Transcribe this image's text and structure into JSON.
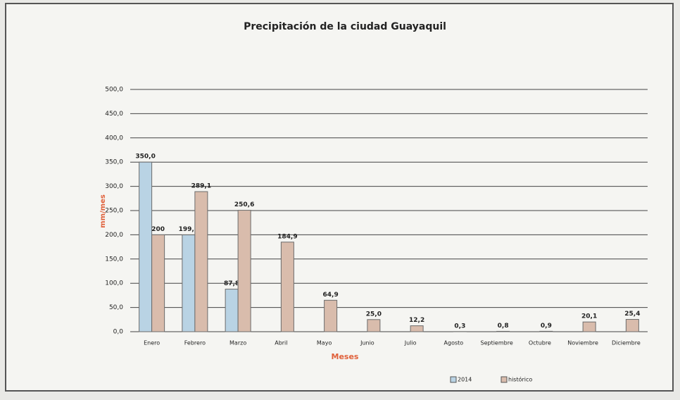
{
  "chart_data": {
    "type": "bar",
    "title": "Precipitación de la ciudad Guayaquil",
    "x_label": "Meses",
    "y_label": "mm/mes",
    "categories": [
      "Enero",
      "Febrero",
      "Marzo",
      "Abril",
      "Mayo",
      "Junio",
      "Julio",
      "Agosto",
      "Septiembre",
      "Octubre",
      "Noviembre",
      "Diciembre"
    ],
    "series": [
      {
        "name": "2014",
        "color": "#b9d3e4",
        "values": [
          350.0,
          199.8,
          87.8,
          null,
          null,
          null,
          null,
          null,
          null,
          null,
          null,
          null
        ],
        "value_labels": [
          "350,0",
          "199,8",
          "87,8",
          null,
          null,
          null,
          null,
          null,
          null,
          null,
          null,
          null
        ]
      },
      {
        "name": "histórico",
        "color": "#d9bcac",
        "values": [
          200,
          289.1,
          250.6,
          184.9,
          64.9,
          25.0,
          12.2,
          0.3,
          0.8,
          0.9,
          20.1,
          25.4
        ],
        "value_labels": [
          "200",
          "289,1",
          "250,6",
          "184,9",
          "64,9",
          "25,0",
          "12,2",
          "0,3",
          "0,8",
          "0,9",
          "20,1",
          "25,4"
        ]
      }
    ],
    "ylim": [
      0,
      500
    ],
    "yticks": [
      {
        "value": 0,
        "label": "0,0"
      },
      {
        "value": 50,
        "label": "50,0"
      },
      {
        "value": 100,
        "label": "100,0"
      },
      {
        "value": 150,
        "label": "150,0"
      },
      {
        "value": 200,
        "label": "200,0"
      },
      {
        "value": 250,
        "label": "250,0"
      },
      {
        "value": 300,
        "label": "300,0"
      },
      {
        "value": 350,
        "label": "350,0"
      },
      {
        "value": 400,
        "label": "400,0"
      },
      {
        "value": 450,
        "label": "450,0"
      },
      {
        "value": 500,
        "label": "500,0"
      }
    ],
    "grid": true,
    "legend": "bottom"
  }
}
